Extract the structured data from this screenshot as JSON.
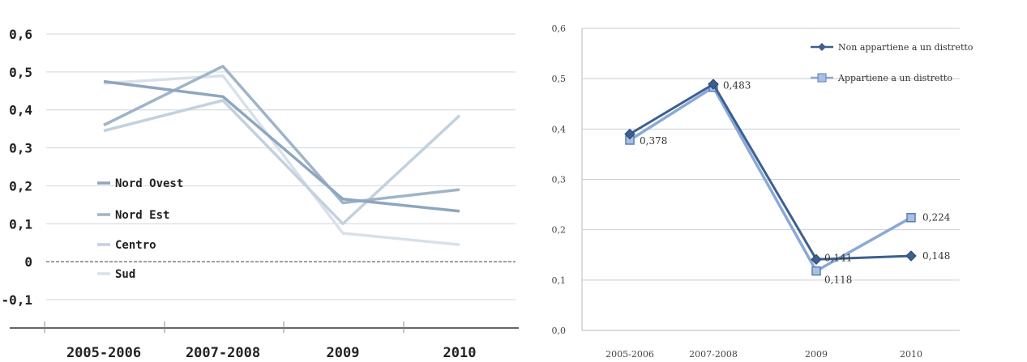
{
  "chart_data": [
    {
      "type": "line",
      "categories": [
        "2005-2006",
        "2007-2008",
        "2009",
        "2010"
      ],
      "ylim": [
        -0.1,
        0.6
      ],
      "yticks": [
        "0,6",
        "0,5",
        "0,4",
        "0,3",
        "0,2",
        "0,1",
        "0",
        "-0,1"
      ],
      "ytick_values": [
        0.6,
        0.5,
        0.4,
        0.3,
        0.2,
        0.1,
        0,
        -0.1
      ],
      "grid": true,
      "legend_position": "left-center",
      "series": [
        {
          "name": "Nord Ovest",
          "values": [
            0.475,
            0.435,
            0.165,
            0.133
          ],
          "color": "#8ea6bf"
        },
        {
          "name": "Nord Est",
          "values": [
            0.36,
            0.515,
            0.155,
            0.19
          ],
          "color": "#9fb4c9"
        },
        {
          "name": "Centro",
          "values": [
            0.345,
            0.425,
            0.1,
            0.385
          ],
          "color": "#c3d1de"
        },
        {
          "name": "Sud",
          "values": [
            0.47,
            0.49,
            0.075,
            0.045
          ],
          "color": "#d8e1ea"
        }
      ]
    },
    {
      "type": "line",
      "categories": [
        "2005-2006",
        "2007-2008",
        "2009",
        "2010"
      ],
      "ylim": [
        0.0,
        0.6
      ],
      "yticks": [
        "0,6",
        "0,5",
        "0,4",
        "0,3",
        "0,2",
        "0,1",
        "0,0"
      ],
      "ytick_values": [
        0.6,
        0.5,
        0.4,
        0.3,
        0.2,
        0.1,
        0.0
      ],
      "grid": true,
      "legend_position": "top-right",
      "series": [
        {
          "name": "Non appartiene a un distretto",
          "values": [
            0.39,
            0.489,
            0.141,
            0.148
          ],
          "color": "#3d5f8f",
          "labels": [
            "",
            "",
            "0,141",
            "0,148"
          ]
        },
        {
          "name": "Appartiene a un distretto",
          "values": [
            0.378,
            0.483,
            0.118,
            0.224
          ],
          "color": "#8aa9d6",
          "labels": [
            "0,378",
            "0,483",
            "0,118",
            "0,224"
          ]
        }
      ]
    }
  ]
}
